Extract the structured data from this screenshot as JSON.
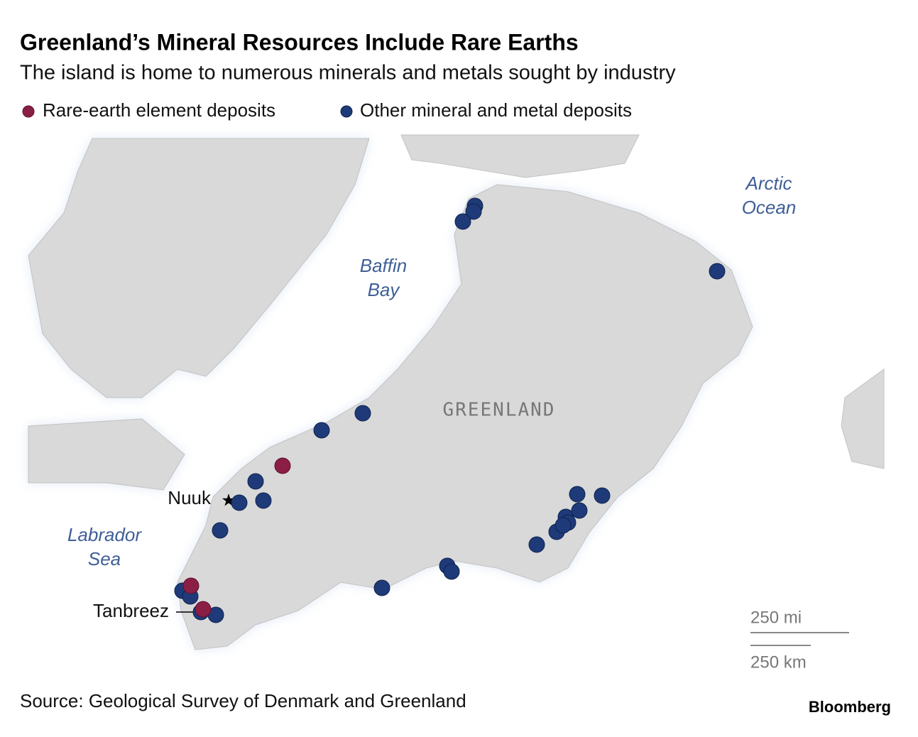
{
  "header": {
    "title": "Greenland’s Mineral Resources Include Rare Earths",
    "subtitle": "The island is home to numerous minerals and metals sought by industry"
  },
  "legend": {
    "items": [
      "Rare-earth element deposits",
      "Other mineral and metal deposits"
    ]
  },
  "map": {
    "labels": {
      "arctic_ocean": [
        "Arctic",
        "Ocean"
      ],
      "baffin_bay": [
        "Baffin",
        "Bay"
      ],
      "greenland": "GREENLAND",
      "nuuk": "Nuuk",
      "labrador_sea": [
        "Labrador",
        "Sea"
      ],
      "tanbreez": "Tanbreez"
    },
    "scale": {
      "miles": "250 mi",
      "km": "250 km"
    }
  },
  "footer": {
    "source": "Source: Geological Survey of Denmark and Greenland",
    "brand": "Bloomberg"
  }
}
